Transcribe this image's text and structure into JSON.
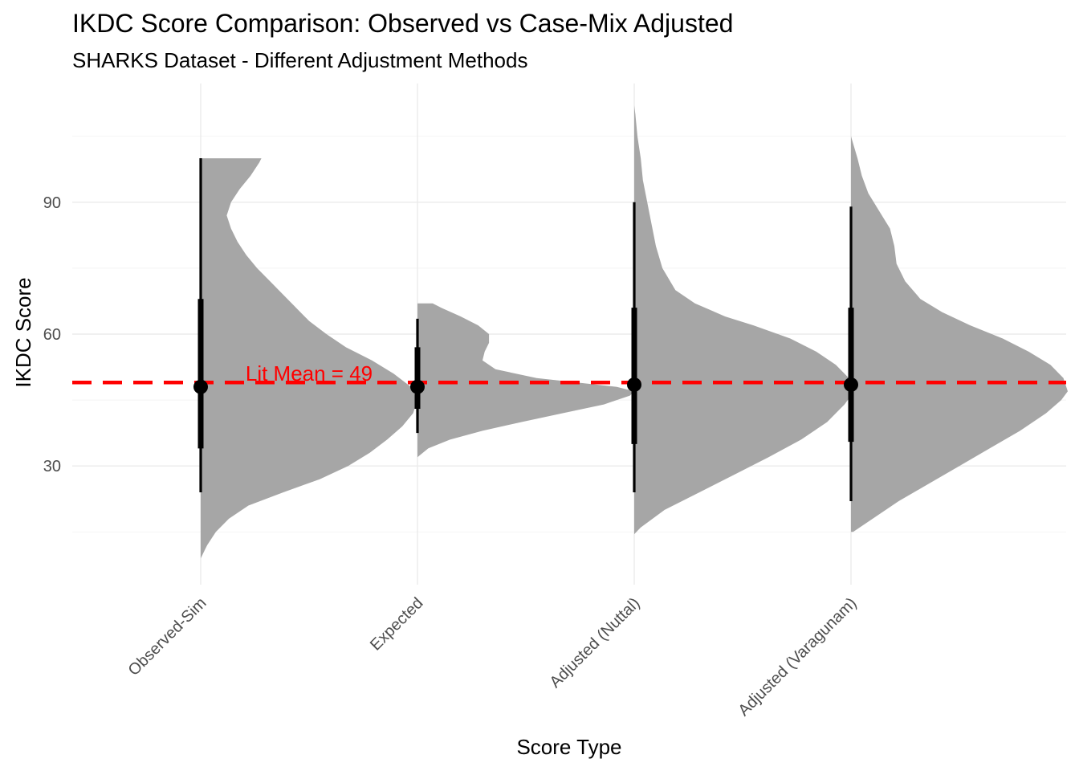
{
  "chart_data": {
    "type": "halfeye",
    "title": "IKDC Score Comparison: Observed vs Case-Mix Adjusted",
    "subtitle": "SHARKS Dataset - Different Adjustment Methods",
    "xlabel": "Score Type",
    "ylabel": "IKDC Score",
    "categories": [
      "Observed-Sim",
      "Expected",
      "Adjusted (Nuttal)",
      "Adjusted (Varagunam)"
    ],
    "ylim": [
      3,
      117
    ],
    "yticks": [
      30,
      60,
      90
    ],
    "grid": true,
    "reference_line": {
      "value": 49,
      "label": "Lit Mean = 49",
      "color": "#ff0000",
      "style": "dashed"
    },
    "series": [
      {
        "category": "Observed-Sim",
        "point": 48,
        "interval_66": [
          34,
          68
        ],
        "interval_95": [
          24,
          100
        ],
        "density": [
          [
            9,
            0
          ],
          [
            12,
            0.03
          ],
          [
            15,
            0.07
          ],
          [
            18,
            0.13
          ],
          [
            21,
            0.22
          ],
          [
            24,
            0.38
          ],
          [
            27,
            0.55
          ],
          [
            30,
            0.68
          ],
          [
            33,
            0.78
          ],
          [
            36,
            0.86
          ],
          [
            39,
            0.93
          ],
          [
            42,
            0.98
          ],
          [
            45,
            1.0
          ],
          [
            48,
            0.97
          ],
          [
            51,
            0.89
          ],
          [
            54,
            0.79
          ],
          [
            57,
            0.67
          ],
          [
            60,
            0.58
          ],
          [
            63,
            0.5
          ],
          [
            66,
            0.44
          ],
          [
            69,
            0.38
          ],
          [
            72,
            0.32
          ],
          [
            75,
            0.26
          ],
          [
            78,
            0.21
          ],
          [
            81,
            0.17
          ],
          [
            84,
            0.14
          ],
          [
            87,
            0.12
          ],
          [
            90,
            0.14
          ],
          [
            93,
            0.18
          ],
          [
            96,
            0.23
          ],
          [
            99,
            0.27
          ],
          [
            100,
            0.28
          ]
        ]
      },
      {
        "category": "Expected",
        "point": 48,
        "interval_66": [
          43,
          57
        ],
        "interval_95": [
          37.5,
          63.5
        ],
        "density": [
          [
            32,
            0.0
          ],
          [
            34,
            0.05
          ],
          [
            36,
            0.15
          ],
          [
            38,
            0.3
          ],
          [
            40,
            0.48
          ],
          [
            42,
            0.67
          ],
          [
            44,
            0.86
          ],
          [
            46,
            0.98
          ],
          [
            47,
            1.0
          ],
          [
            48,
            0.92
          ],
          [
            50,
            0.55
          ],
          [
            52,
            0.36
          ],
          [
            54,
            0.3
          ],
          [
            56,
            0.31
          ],
          [
            58,
            0.33
          ],
          [
            60,
            0.33
          ],
          [
            62,
            0.28
          ],
          [
            64,
            0.2
          ],
          [
            66,
            0.11
          ],
          [
            67,
            0.07
          ]
        ]
      },
      {
        "category": "Adjusted (Nuttal)",
        "point": 48.5,
        "interval_66": [
          35,
          66
        ],
        "interval_95": [
          24,
          90
        ],
        "density": [
          [
            14.5,
            0.0
          ],
          [
            16,
            0.03
          ],
          [
            20,
            0.14
          ],
          [
            24,
            0.3
          ],
          [
            28,
            0.46
          ],
          [
            32,
            0.62
          ],
          [
            36,
            0.77
          ],
          [
            40,
            0.89
          ],
          [
            44,
            0.97
          ],
          [
            46,
            1.0
          ],
          [
            50,
            0.99
          ],
          [
            53,
            0.93
          ],
          [
            56,
            0.84
          ],
          [
            59,
            0.72
          ],
          [
            62,
            0.55
          ],
          [
            64,
            0.42
          ],
          [
            67,
            0.28
          ],
          [
            70,
            0.19
          ],
          [
            75,
            0.13
          ],
          [
            80,
            0.1
          ],
          [
            85,
            0.08
          ],
          [
            90,
            0.06
          ],
          [
            95,
            0.04
          ],
          [
            100,
            0.03
          ],
          [
            105,
            0.015
          ],
          [
            110,
            0.005
          ],
          [
            112,
            0.0
          ]
        ]
      },
      {
        "category": "Adjusted (Varagunam)",
        "point": 48.5,
        "interval_66": [
          35.5,
          66
        ],
        "interval_95": [
          22,
          89
        ],
        "density": [
          [
            15,
            0.01
          ],
          [
            18,
            0.1
          ],
          [
            22,
            0.22
          ],
          [
            26,
            0.36
          ],
          [
            30,
            0.5
          ],
          [
            34,
            0.64
          ],
          [
            38,
            0.78
          ],
          [
            42,
            0.9
          ],
          [
            45,
            0.97
          ],
          [
            47,
            1.0
          ],
          [
            50,
            0.98
          ],
          [
            53,
            0.92
          ],
          [
            56,
            0.82
          ],
          [
            59,
            0.7
          ],
          [
            62,
            0.55
          ],
          [
            65,
            0.42
          ],
          [
            68,
            0.32
          ],
          [
            72,
            0.25
          ],
          [
            76,
            0.21
          ],
          [
            80,
            0.2
          ],
          [
            84,
            0.18
          ],
          [
            88,
            0.13
          ],
          [
            92,
            0.08
          ],
          [
            96,
            0.05
          ],
          [
            100,
            0.03
          ],
          [
            105,
            0.0
          ]
        ]
      }
    ]
  }
}
